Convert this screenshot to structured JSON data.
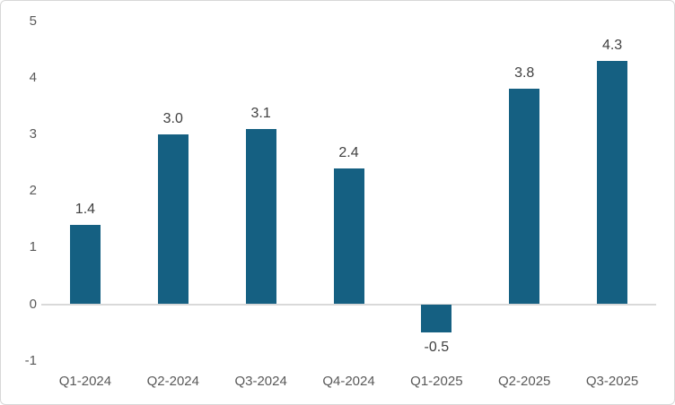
{
  "chart_data": {
    "type": "bar",
    "title": "",
    "xlabel": "",
    "ylabel": "",
    "categories": [
      "Q1-2024",
      "Q2-2024",
      "Q3-2024",
      "Q4-2024",
      "Q1-2025",
      "Q2-2025",
      "Q3-2025"
    ],
    "values": [
      1.4,
      3.0,
      3.1,
      2.4,
      -0.5,
      3.8,
      4.3
    ],
    "data_labels": [
      "1.4",
      "3.0",
      "3.1",
      "2.4",
      "-0.5",
      "3.8",
      "4.3"
    ],
    "ylim": [
      -1,
      5
    ],
    "yticks": [
      "5",
      "4",
      "3",
      "2",
      "1",
      "0",
      "-1"
    ],
    "ytick_values": [
      5,
      4,
      3,
      2,
      1,
      0,
      -1
    ],
    "grid": "zero-line-only",
    "legend_position": "none",
    "colors": {
      "bar": "#156082",
      "axis_text": "#595959",
      "data_label_text": "#404040",
      "zero_line": "#d9d9d9",
      "chart_border": "#d7d7d7",
      "background": "#ffffff"
    }
  }
}
